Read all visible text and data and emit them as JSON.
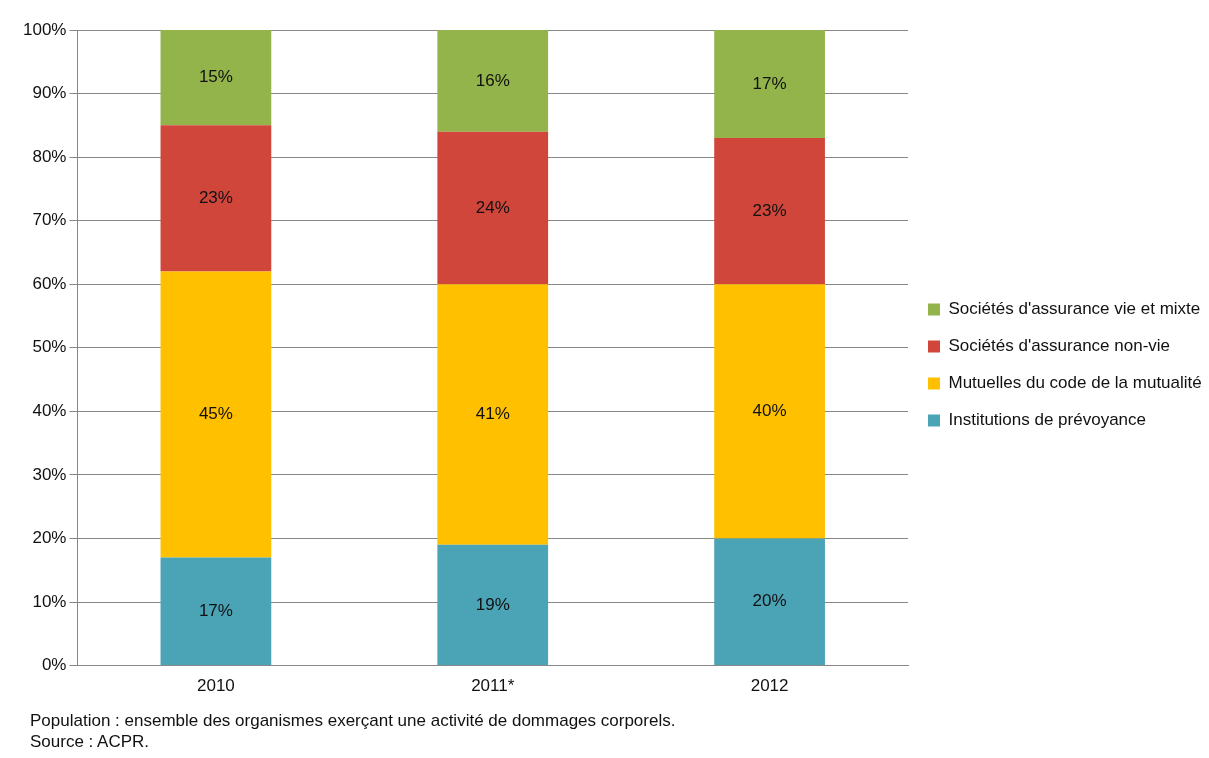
{
  "chart_data": {
    "type": "bar",
    "stacked": true,
    "categories": [
      "2010",
      "2011*",
      "2012"
    ],
    "series": [
      {
        "name": "Institutions de prévoyance",
        "color": "#4ba3b6",
        "values": [
          17,
          19,
          20
        ],
        "value_labels": [
          "17%",
          "19%",
          "20%"
        ]
      },
      {
        "name": "Mutuelles du code de la mutualité",
        "color": "#ffc000",
        "values": [
          45,
          41,
          40
        ],
        "value_labels": [
          "45%",
          "41%",
          "40%"
        ]
      },
      {
        "name": "Sociétés d'assurance non-vie",
        "color": "#d0463b",
        "values": [
          23,
          24,
          23
        ],
        "value_labels": [
          "23%",
          "24%",
          "23%"
        ]
      },
      {
        "name": "Sociétés d'assurance vie et mixte",
        "color": "#92b44a",
        "values": [
          15,
          16,
          17
        ],
        "value_labels": [
          "15%",
          "16%",
          "17%"
        ]
      }
    ],
    "ylim": [
      0,
      100
    ],
    "yticks": [
      {
        "value": 0,
        "label": "0%"
      },
      {
        "value": 10,
        "label": "10%"
      },
      {
        "value": 20,
        "label": "20%"
      },
      {
        "value": 30,
        "label": "30%"
      },
      {
        "value": 40,
        "label": "40%"
      },
      {
        "value": 50,
        "label": "50%"
      },
      {
        "value": 60,
        "label": "60%"
      },
      {
        "value": 70,
        "label": "70%"
      },
      {
        "value": 80,
        "label": "80%"
      },
      {
        "value": 90,
        "label": "90%"
      },
      {
        "value": 100,
        "label": "100%"
      }
    ],
    "grid": "y",
    "legend": "right",
    "annotations": [
      "Population : ensemble des organismes exerçant une activité de dommages corporels.",
      "Source : ACPR."
    ]
  }
}
